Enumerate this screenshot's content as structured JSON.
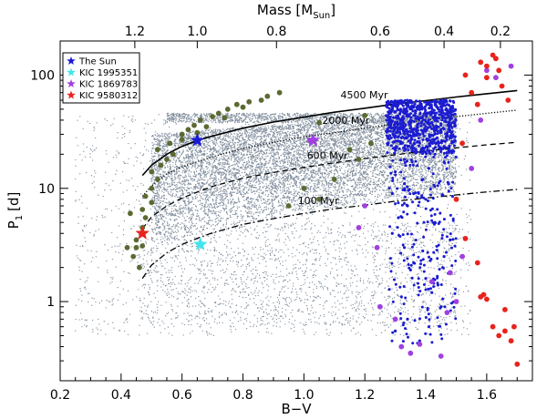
{
  "chart_data": {
    "type": "scatter",
    "title": "",
    "xlabel": "B−V",
    "ylabel": "P",
    "ylabel_sub": "1",
    "ylabel_unit": "[d]",
    "top_xlabel": "Mass [M",
    "top_xlabel_sub": "Sun",
    "top_xlabel_end": "]",
    "xlim": [
      0.2,
      1.75
    ],
    "ylim": [
      0.2,
      200
    ],
    "yscale": "log",
    "x_ticks": [
      0.2,
      0.4,
      0.6,
      0.8,
      1.0,
      1.2,
      1.4,
      1.6
    ],
    "x_tick_labels": [
      "0.2",
      "0.4",
      "0.6",
      "0.8",
      "1.0",
      "1.2",
      "1.4",
      "1.6"
    ],
    "y_ticks": [
      1,
      10,
      100
    ],
    "y_tick_labels": [
      "1",
      "10",
      "100"
    ],
    "top_ticks": [
      {
        "label": "1.2",
        "bv": 0.445
      },
      {
        "label": "1.0",
        "bv": 0.65
      },
      {
        "label": "0.8",
        "bv": 0.91
      },
      {
        "label": "0.6",
        "bv": 1.25
      },
      {
        "label": "0.4",
        "bv": 1.46
      },
      {
        "label": "0.2",
        "bv": 1.645
      }
    ],
    "legend": {
      "position": "top-left",
      "entries": [
        {
          "label": "The Sun",
          "color": "#1a1ad6",
          "marker": "star"
        },
        {
          "label": "KIC 1995351",
          "color": "#3ee6ee",
          "marker": "star"
        },
        {
          "label": "KIC 1869783",
          "color": "#a040e0",
          "marker": "star"
        },
        {
          "label": "KIC 9580312",
          "color": "#e8231c",
          "marker": "star"
        }
      ]
    },
    "gyrochrones": [
      {
        "label": "4500 Myr",
        "style": "solid",
        "points": [
          [
            0.47,
            13
          ],
          [
            0.5,
            16
          ],
          [
            0.55,
            20
          ],
          [
            0.6,
            23.5
          ],
          [
            0.66,
            27
          ],
          [
            0.7,
            29
          ],
          [
            0.8,
            34
          ],
          [
            0.9,
            38.5
          ],
          [
            1.0,
            42.5
          ],
          [
            1.1,
            47
          ],
          [
            1.2,
            51
          ],
          [
            1.3,
            55.5
          ],
          [
            1.4,
            59.5
          ],
          [
            1.5,
            64
          ],
          [
            1.6,
            68.5
          ],
          [
            1.7,
            73
          ]
        ]
      },
      {
        "label": "2000 Myr",
        "style": "dotted",
        "points": [
          [
            0.47,
            8.5
          ],
          [
            0.5,
            10.5
          ],
          [
            0.55,
            13.5
          ],
          [
            0.6,
            15.5
          ],
          [
            0.66,
            17.5
          ],
          [
            0.7,
            19
          ],
          [
            0.8,
            22.5
          ],
          [
            0.9,
            25.5
          ],
          [
            1.0,
            28.5
          ],
          [
            1.1,
            31
          ],
          [
            1.2,
            34
          ],
          [
            1.3,
            37
          ],
          [
            1.4,
            40
          ],
          [
            1.5,
            43
          ],
          [
            1.6,
            46
          ],
          [
            1.7,
            49
          ]
        ]
      },
      {
        "label": "600 Myr",
        "style": "dashed",
        "points": [
          [
            0.47,
            4.4
          ],
          [
            0.5,
            5.6
          ],
          [
            0.55,
            7
          ],
          [
            0.6,
            8.2
          ],
          [
            0.66,
            9.5
          ],
          [
            0.7,
            10.4
          ],
          [
            0.8,
            12.3
          ],
          [
            0.9,
            13.8
          ],
          [
            1.0,
            15.3
          ],
          [
            1.1,
            16.8
          ],
          [
            1.2,
            18.3
          ],
          [
            1.3,
            19.8
          ],
          [
            1.4,
            21.3
          ],
          [
            1.5,
            22.8
          ],
          [
            1.6,
            24.2
          ],
          [
            1.7,
            25.5
          ]
        ]
      },
      {
        "label": "100 Myr",
        "style": "dashdot",
        "points": [
          [
            0.47,
            1.6
          ],
          [
            0.5,
            2.1
          ],
          [
            0.55,
            2.7
          ],
          [
            0.6,
            3.2
          ],
          [
            0.66,
            3.7
          ],
          [
            0.7,
            4.05
          ],
          [
            0.8,
            4.8
          ],
          [
            0.9,
            5.4
          ],
          [
            1.0,
            6.0
          ],
          [
            1.1,
            6.6
          ],
          [
            1.2,
            7.1
          ],
          [
            1.3,
            7.7
          ],
          [
            1.4,
            8.2
          ],
          [
            1.5,
            8.75
          ],
          [
            1.6,
            9.3
          ],
          [
            1.7,
            9.8
          ]
        ]
      }
    ],
    "highlighted_stars": [
      {
        "label": "The Sun",
        "bv": 0.65,
        "period": 26.5,
        "color": "#1a1ad6"
      },
      {
        "label": "KIC 1995351",
        "bv": 0.66,
        "period": 3.2,
        "color": "#3ee6ee"
      },
      {
        "label": "KIC 1869783",
        "bv": 1.03,
        "period": 26.5,
        "color": "#a040e0"
      },
      {
        "label": "KIC 9580312",
        "bv": 0.47,
        "period": 4.0,
        "color": "#e8231c"
      }
    ],
    "series": [
      {
        "name": "Kepler field stars (gray)",
        "color": "#8491a0",
        "note": "~20000 stars, densest between B-V 0.5-1.5, P 5-45 d"
      },
      {
        "name": "Blue (M dwarfs)",
        "color": "#1c1cd0",
        "points": [
          [
            1.28,
            40
          ],
          [
            1.3,
            35
          ],
          [
            1.32,
            28
          ],
          [
            1.3,
            22
          ],
          [
            1.33,
            18
          ],
          [
            1.35,
            40
          ],
          [
            1.38,
            30
          ],
          [
            1.4,
            45
          ],
          [
            1.42,
            38
          ],
          [
            1.44,
            25
          ],
          [
            1.46,
            42
          ],
          [
            1.48,
            50
          ],
          [
            1.47,
            55
          ],
          [
            1.45,
            33
          ],
          [
            1.43,
            20
          ],
          [
            1.41,
            15
          ],
          [
            1.39,
            12
          ],
          [
            1.36,
            9
          ],
          [
            1.34,
            7
          ],
          [
            1.31,
            5.5
          ],
          [
            1.29,
            4
          ],
          [
            1.33,
            3
          ],
          [
            1.36,
            2.2
          ],
          [
            1.4,
            1.6
          ],
          [
            1.42,
            1.2
          ],
          [
            1.45,
            0.9
          ],
          [
            1.3,
            0.55
          ],
          [
            1.34,
            0.7
          ],
          [
            1.38,
            0.45
          ],
          [
            1.41,
            0.6
          ],
          [
            1.44,
            1.4
          ],
          [
            1.46,
            2.5
          ],
          [
            1.48,
            3.5
          ],
          [
            1.32,
            1.1
          ],
          [
            1.35,
            1.9
          ],
          [
            1.39,
            2.8
          ],
          [
            1.3,
            14
          ],
          [
            1.31,
            26
          ],
          [
            1.37,
            21
          ],
          [
            1.47,
            30
          ],
          [
            1.49,
            48
          ],
          [
            1.27,
            32
          ],
          [
            1.36,
            52
          ],
          [
            1.42,
            58
          ],
          [
            1.45,
            60
          ],
          [
            1.34,
            44
          ],
          [
            1.4,
            8
          ],
          [
            1.43,
            5
          ],
          [
            1.29,
            9
          ],
          [
            1.33,
            11
          ]
        ]
      },
      {
        "name": "Purple",
        "color": "#a040e0",
        "points": [
          [
            1.02,
            26.5
          ],
          [
            1.18,
            4.5
          ],
          [
            1.25,
            0.9
          ],
          [
            1.3,
            0.7
          ],
          [
            1.32,
            0.4
          ],
          [
            1.35,
            0.35
          ],
          [
            1.38,
            0.42
          ],
          [
            1.45,
            0.33
          ],
          [
            1.48,
            1.8
          ],
          [
            1.5,
            1.0
          ],
          [
            1.52,
            2.5
          ],
          [
            1.55,
            15
          ],
          [
            1.58,
            40
          ],
          [
            1.6,
            110
          ],
          [
            1.63,
            95
          ],
          [
            1.68,
            120
          ],
          [
            1.2,
            7
          ],
          [
            1.24,
            3
          ],
          [
            1.42,
            1.5
          ],
          [
            1.47,
            0.8
          ]
        ]
      },
      {
        "name": "Red",
        "color": "#e8231c",
        "points": [
          [
            0.47,
            4.0
          ],
          [
            1.53,
            100
          ],
          [
            1.55,
            70
          ],
          [
            1.57,
            55
          ],
          [
            1.58,
            130
          ],
          [
            1.6,
            120
          ],
          [
            1.62,
            150
          ],
          [
            1.63,
            140
          ],
          [
            1.65,
            80
          ],
          [
            1.67,
            60
          ],
          [
            1.6,
            95
          ],
          [
            1.64,
            110
          ],
          [
            1.52,
            25
          ],
          [
            1.5,
            8
          ],
          [
            1.53,
            3.6
          ],
          [
            1.57,
            2.2
          ],
          [
            1.58,
            1.1
          ],
          [
            1.6,
            1.05
          ],
          [
            1.62,
            0.6
          ],
          [
            1.64,
            0.5
          ],
          [
            1.66,
            0.85
          ],
          [
            1.68,
            0.45
          ],
          [
            1.7,
            0.28
          ],
          [
            1.69,
            0.6
          ],
          [
            1.66,
            0.55
          ],
          [
            1.59,
            1.15
          ]
        ]
      },
      {
        "name": "Olive",
        "color": "#5b6a32",
        "points": [
          [
            0.45,
            3.0
          ],
          [
            0.44,
            2.5
          ],
          [
            0.46,
            2.0
          ],
          [
            0.45,
            3.5
          ],
          [
            0.47,
            4.5
          ],
          [
            0.48,
            5.5
          ],
          [
            0.47,
            6.5
          ],
          [
            0.5,
            7.5
          ],
          [
            0.48,
            8.5
          ],
          [
            0.5,
            10
          ],
          [
            0.52,
            12
          ],
          [
            0.5,
            14
          ],
          [
            0.53,
            16
          ],
          [
            0.55,
            18
          ],
          [
            0.52,
            22
          ],
          [
            0.56,
            25
          ],
          [
            0.6,
            30
          ],
          [
            0.62,
            33
          ],
          [
            0.64,
            36
          ],
          [
            0.66,
            40
          ],
          [
            0.7,
            43
          ],
          [
            0.72,
            46
          ],
          [
            0.75,
            50
          ],
          [
            0.78,
            55
          ],
          [
            0.82,
            58
          ],
          [
            0.88,
            65
          ],
          [
            0.92,
            70
          ],
          [
            0.57,
            20
          ],
          [
            0.6,
            27
          ],
          [
            0.65,
            31
          ],
          [
            0.68,
            35
          ],
          [
            0.74,
            42
          ],
          [
            0.8,
            52
          ],
          [
            0.86,
            60
          ],
          [
            1.05,
            38
          ],
          [
            1.2,
            44
          ],
          [
            1.15,
            22
          ],
          [
            1.18,
            18
          ],
          [
            1.22,
            25
          ],
          [
            1.05,
            8
          ],
          [
            1.1,
            12
          ],
          [
            1.0,
            10
          ],
          [
            0.95,
            7
          ],
          [
            0.47,
            3.1
          ],
          [
            0.42,
            3.0
          ],
          [
            0.43,
            6.0
          ]
        ]
      }
    ]
  }
}
